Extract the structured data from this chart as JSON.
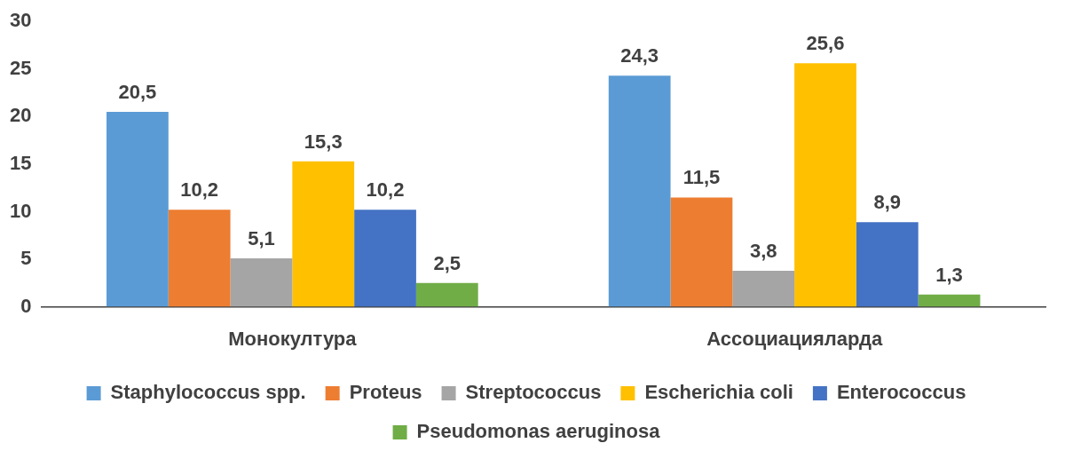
{
  "chart_data": {
    "type": "bar",
    "categories": [
      "Монокултура",
      "Ассоциацияларда"
    ],
    "series": [
      {
        "name": "Staphylococcus spp.",
        "color": "#5b9bd5",
        "values": [
          20.5,
          24.3
        ],
        "value_labels": [
          "20,5",
          "24,3"
        ]
      },
      {
        "name": "Proteus",
        "color": "#ed7d31",
        "values": [
          10.2,
          11.5
        ],
        "value_labels": [
          "10,2",
          "11,5"
        ]
      },
      {
        "name": "Streptococcus",
        "color": "#a5a5a5",
        "values": [
          5.1,
          3.8
        ],
        "value_labels": [
          "5,1",
          "3,8"
        ]
      },
      {
        "name": "Escherichia coli",
        "color": "#ffc000",
        "values": [
          15.3,
          25.6
        ],
        "value_labels": [
          "15,3",
          "25,6"
        ]
      },
      {
        "name": "Enterococcus",
        "color": "#4472c4",
        "values": [
          10.2,
          8.9
        ],
        "value_labels": [
          "10,2",
          "8,9"
        ]
      },
      {
        "name": "Pseudomonas aeruginosa",
        "color": "#70ad47",
        "values": [
          2.5,
          1.3
        ],
        "value_labels": [
          "2,5",
          "1,3"
        ]
      }
    ],
    "ylim": [
      0,
      30
    ],
    "yticks": [
      0,
      5,
      10,
      15,
      20,
      25,
      30
    ],
    "legend": "bottom"
  }
}
